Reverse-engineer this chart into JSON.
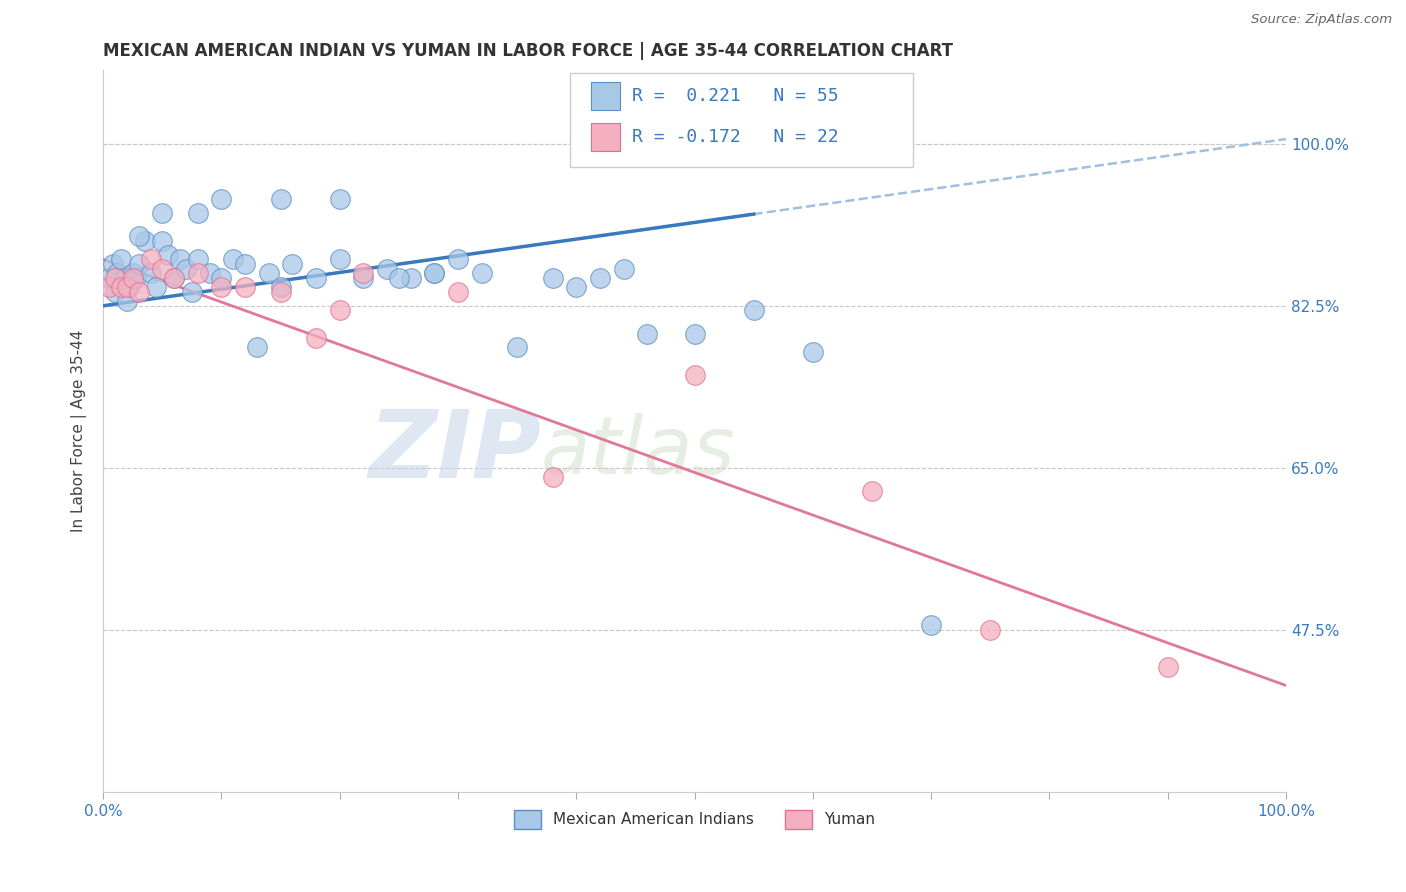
{
  "title": "MEXICAN AMERICAN INDIAN VS YUMAN IN LABOR FORCE | AGE 35-44 CORRELATION CHART",
  "source": "Source: ZipAtlas.com",
  "ylabel": "In Labor Force | Age 35-44",
  "xlim": [
    0.0,
    1.0
  ],
  "ylim": [
    0.3,
    1.08
  ],
  "xtick_positions": [
    0.0,
    0.1,
    0.2,
    0.3,
    0.4,
    0.5,
    0.6,
    0.7,
    0.8,
    0.9,
    1.0
  ],
  "xticklabels": [
    "0.0%",
    "",
    "",
    "",
    "",
    "",
    "",
    "",
    "",
    "",
    "100.0%"
  ],
  "ytick_positions": [
    0.475,
    0.65,
    0.825,
    1.0
  ],
  "ytick_labels": [
    "47.5%",
    "65.0%",
    "82.5%",
    "100.0%"
  ],
  "blue_color": "#a8c8e8",
  "pink_color": "#f4afc0",
  "blue_edge": "#5b8fc4",
  "pink_edge": "#e07090",
  "line_blue": "#3a78c0",
  "line_pink": "#e07898",
  "dashed_color": "#a0c0e0",
  "R_blue": 0.221,
  "N_blue": 55,
  "R_pink": -0.172,
  "N_pink": 22,
  "legend_label_blue": "Mexican American Indians",
  "legend_label_pink": "Yuman",
  "watermark_zip": "ZIP",
  "watermark_atlas": "atlas",
  "background_color": "#ffffff",
  "grid_color": "#c8c8c8",
  "blue_x": [
    0.005,
    0.008,
    0.01,
    0.012,
    0.015,
    0.018,
    0.02,
    0.022,
    0.025,
    0.028,
    0.03,
    0.035,
    0.04,
    0.045,
    0.05,
    0.055,
    0.06,
    0.065,
    0.07,
    0.075,
    0.08,
    0.09,
    0.1,
    0.11,
    0.12,
    0.13,
    0.14,
    0.15,
    0.16,
    0.18,
    0.2,
    0.22,
    0.24,
    0.26,
    0.28,
    0.3,
    0.32,
    0.35,
    0.38,
    0.4,
    0.42,
    0.44,
    0.46,
    0.5,
    0.55,
    0.6,
    0.7,
    0.2,
    0.1,
    0.15,
    0.08,
    0.05,
    0.03,
    0.25,
    0.28
  ],
  "blue_y": [
    0.855,
    0.87,
    0.84,
    0.86,
    0.875,
    0.855,
    0.83,
    0.845,
    0.86,
    0.855,
    0.87,
    0.895,
    0.86,
    0.845,
    0.895,
    0.88,
    0.855,
    0.875,
    0.865,
    0.84,
    0.875,
    0.86,
    0.855,
    0.875,
    0.87,
    0.78,
    0.86,
    0.845,
    0.87,
    0.855,
    0.875,
    0.855,
    0.865,
    0.855,
    0.86,
    0.875,
    0.86,
    0.78,
    0.855,
    0.845,
    0.855,
    0.865,
    0.795,
    0.795,
    0.82,
    0.775,
    0.48,
    0.94,
    0.94,
    0.94,
    0.925,
    0.925,
    0.9,
    0.855,
    0.86
  ],
  "pink_x": [
    0.005,
    0.01,
    0.015,
    0.02,
    0.025,
    0.03,
    0.04,
    0.05,
    0.06,
    0.08,
    0.1,
    0.12,
    0.15,
    0.18,
    0.2,
    0.22,
    0.3,
    0.38,
    0.5,
    0.65,
    0.75,
    0.9
  ],
  "pink_y": [
    0.845,
    0.855,
    0.845,
    0.845,
    0.855,
    0.84,
    0.875,
    0.865,
    0.855,
    0.86,
    0.845,
    0.845,
    0.84,
    0.79,
    0.82,
    0.86,
    0.84,
    0.64,
    0.75,
    0.625,
    0.475,
    0.435
  ],
  "slope_blue": 0.18,
  "intercept_blue": 0.825,
  "slope_pink": -0.46,
  "intercept_pink": 0.875
}
